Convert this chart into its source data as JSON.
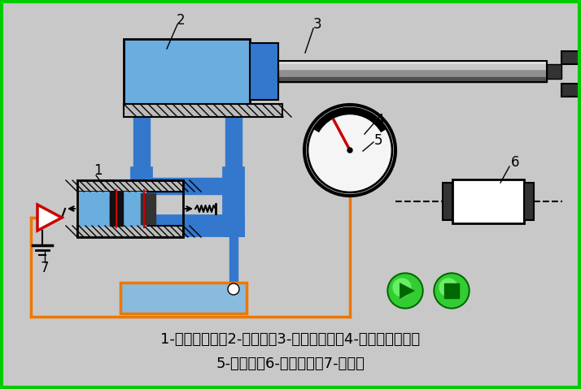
{
  "bg_color": "#c8c8c8",
  "border_color": "#00cc00",
  "text_line1": "1-电液伺服阀；2-液压缸；3-机械手手臂；4-齿轮齿条机构；",
  "text_line2": "5-电位器；6-步进电机；7-放大器",
  "blue_light": "#6aaddf",
  "blue_mid": "#3378cc",
  "blue_dark": "#0044aa",
  "orange": "#ee7700",
  "black": "#000000",
  "white": "#ffffff",
  "red": "#cc0000",
  "silver_light": "#d8d8d8",
  "silver_mid": "#aaaaaa",
  "silver_dark": "#666666",
  "green_dark": "#006600",
  "green_mid": "#22aa22",
  "green_light": "#44cc44",
  "hatch_bg": "#cccccc",
  "gray_bg": "#d0d0d0"
}
